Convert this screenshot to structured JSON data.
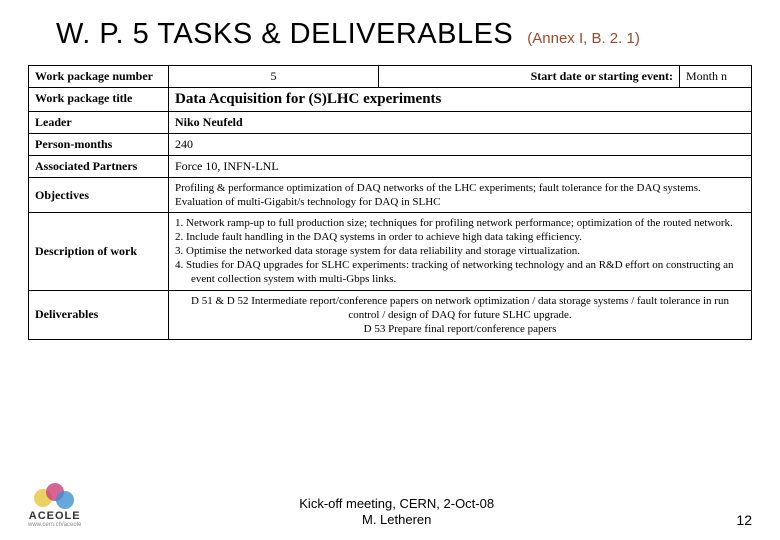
{
  "header": {
    "title": "W. P. 5 TASKS & DELIVERABLES",
    "annex": "(Annex I, B. 2. 1)"
  },
  "rows": {
    "wp_number_label": "Work package number",
    "wp_number_value": "5",
    "start_label": "Start date or starting event:",
    "start_value": "Month n",
    "wp_title_label": "Work package title",
    "wp_title_value": "Data Acquisition for (S)LHC experiments",
    "leader_label": "Leader",
    "leader_value": "Niko Neufeld",
    "pm_label": "Person-months",
    "pm_value": "240",
    "partners_label": "Associated Partners",
    "partners_value": "Force 10,   INFN-LNL",
    "objectives_label": "Objectives",
    "objectives_value": "Profiling & performance optimization of DAQ networks of the LHC experiments; fault tolerance for the DAQ systems. Evaluation of multi-Gigabit/s technology for DAQ in SLHC",
    "dow_label": "Description of work",
    "dow_items": [
      "1.  Network ramp-up to full production size; techniques for profiling network performance; optimization of the routed network.",
      "2.  Include fault handling in the DAQ systems in order to achieve high data taking efficiency.",
      "3.  Optimise the networked data storage system for data reliability and storage virtualization.",
      "4.  Studies for DAQ upgrades for SLHC experiments: tracking of networking technology and an R&D effort on constructing an event collection system with multi-Gbps links."
    ],
    "deliverables_label": "Deliverables",
    "deliverables_line1": "D 51 & D 52  Intermediate report/conference papers on network optimization / data storage systems / fault tolerance in run control / design of DAQ for future SLHC upgrade.",
    "deliverables_line2": "D 53  Prepare final report/conference papers"
  },
  "footer": {
    "logo_text": "ACEOLE",
    "logo_url": "www.cern.ch/aceole",
    "center_line1": "Kick-off meeting, CERN, 2-Oct-08",
    "center_line2": "M. Letheren",
    "page": "12"
  }
}
